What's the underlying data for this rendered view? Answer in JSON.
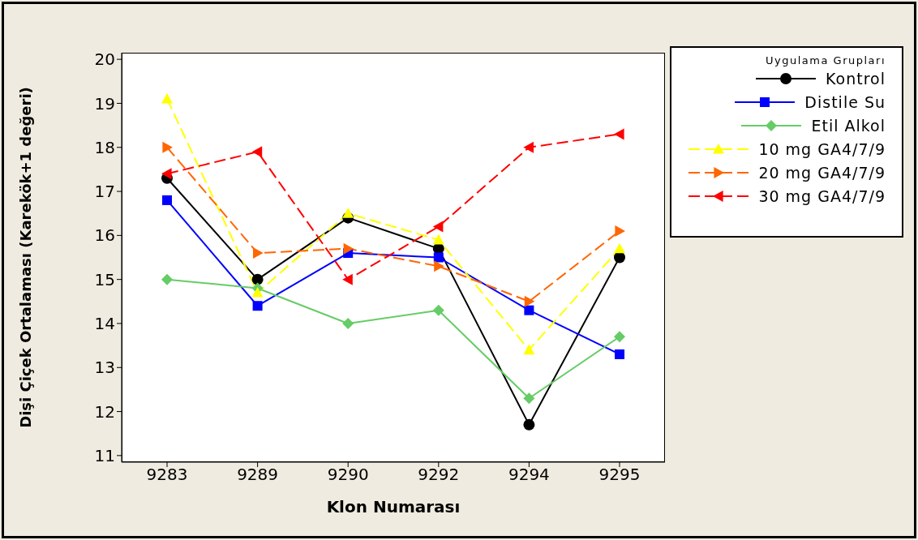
{
  "chart_data": {
    "type": "line",
    "xlabel": "Klon Numarası",
    "ylabel": "Dişi Çiçek Ortalaması (Karekök+1 değeri)",
    "legend_title": "Uygulama Grupları",
    "categories": [
      "9283",
      "9289",
      "9290",
      "9292",
      "9294",
      "9295"
    ],
    "series": [
      {
        "name": "Kontrol",
        "color": "#000000",
        "marker": "circle",
        "line_style": "solid",
        "values": [
          17.3,
          15.0,
          16.4,
          15.7,
          11.7,
          15.5
        ]
      },
      {
        "name": "Distile Su",
        "color": "#0000ff",
        "marker": "square",
        "line_style": "solid",
        "values": [
          16.8,
          14.4,
          15.6,
          15.5,
          14.3,
          13.3
        ]
      },
      {
        "name": "Etil Alkol",
        "color": "#66cc66",
        "marker": "diamond",
        "line_style": "solid",
        "values": [
          15.0,
          14.8,
          14.0,
          14.3,
          12.3,
          13.7
        ]
      },
      {
        "name": "10 mg GA4/7/9",
        "color": "#ffff00",
        "marker": "triangle",
        "line_style": "dashed",
        "values": [
          19.1,
          14.7,
          16.5,
          15.9,
          13.4,
          15.7
        ]
      },
      {
        "name": "20 mg GA4/7/9",
        "color": "#ff6600",
        "marker": "triangle-right",
        "line_style": "dashed",
        "values": [
          18.0,
          15.6,
          15.7,
          15.3,
          14.5,
          16.1
        ]
      },
      {
        "name": "30 mg GA4/7/9",
        "color": "#ff0000",
        "marker": "triangle-left",
        "line_style": "dashed",
        "values": [
          17.4,
          17.9,
          15.0,
          16.2,
          18.0,
          18.3
        ]
      }
    ],
    "ylim": [
      10.85,
      20.15
    ],
    "yticks": [
      11,
      12,
      13,
      14,
      15,
      16,
      17,
      18,
      19,
      20
    ],
    "grid": false,
    "legend": "top right"
  }
}
